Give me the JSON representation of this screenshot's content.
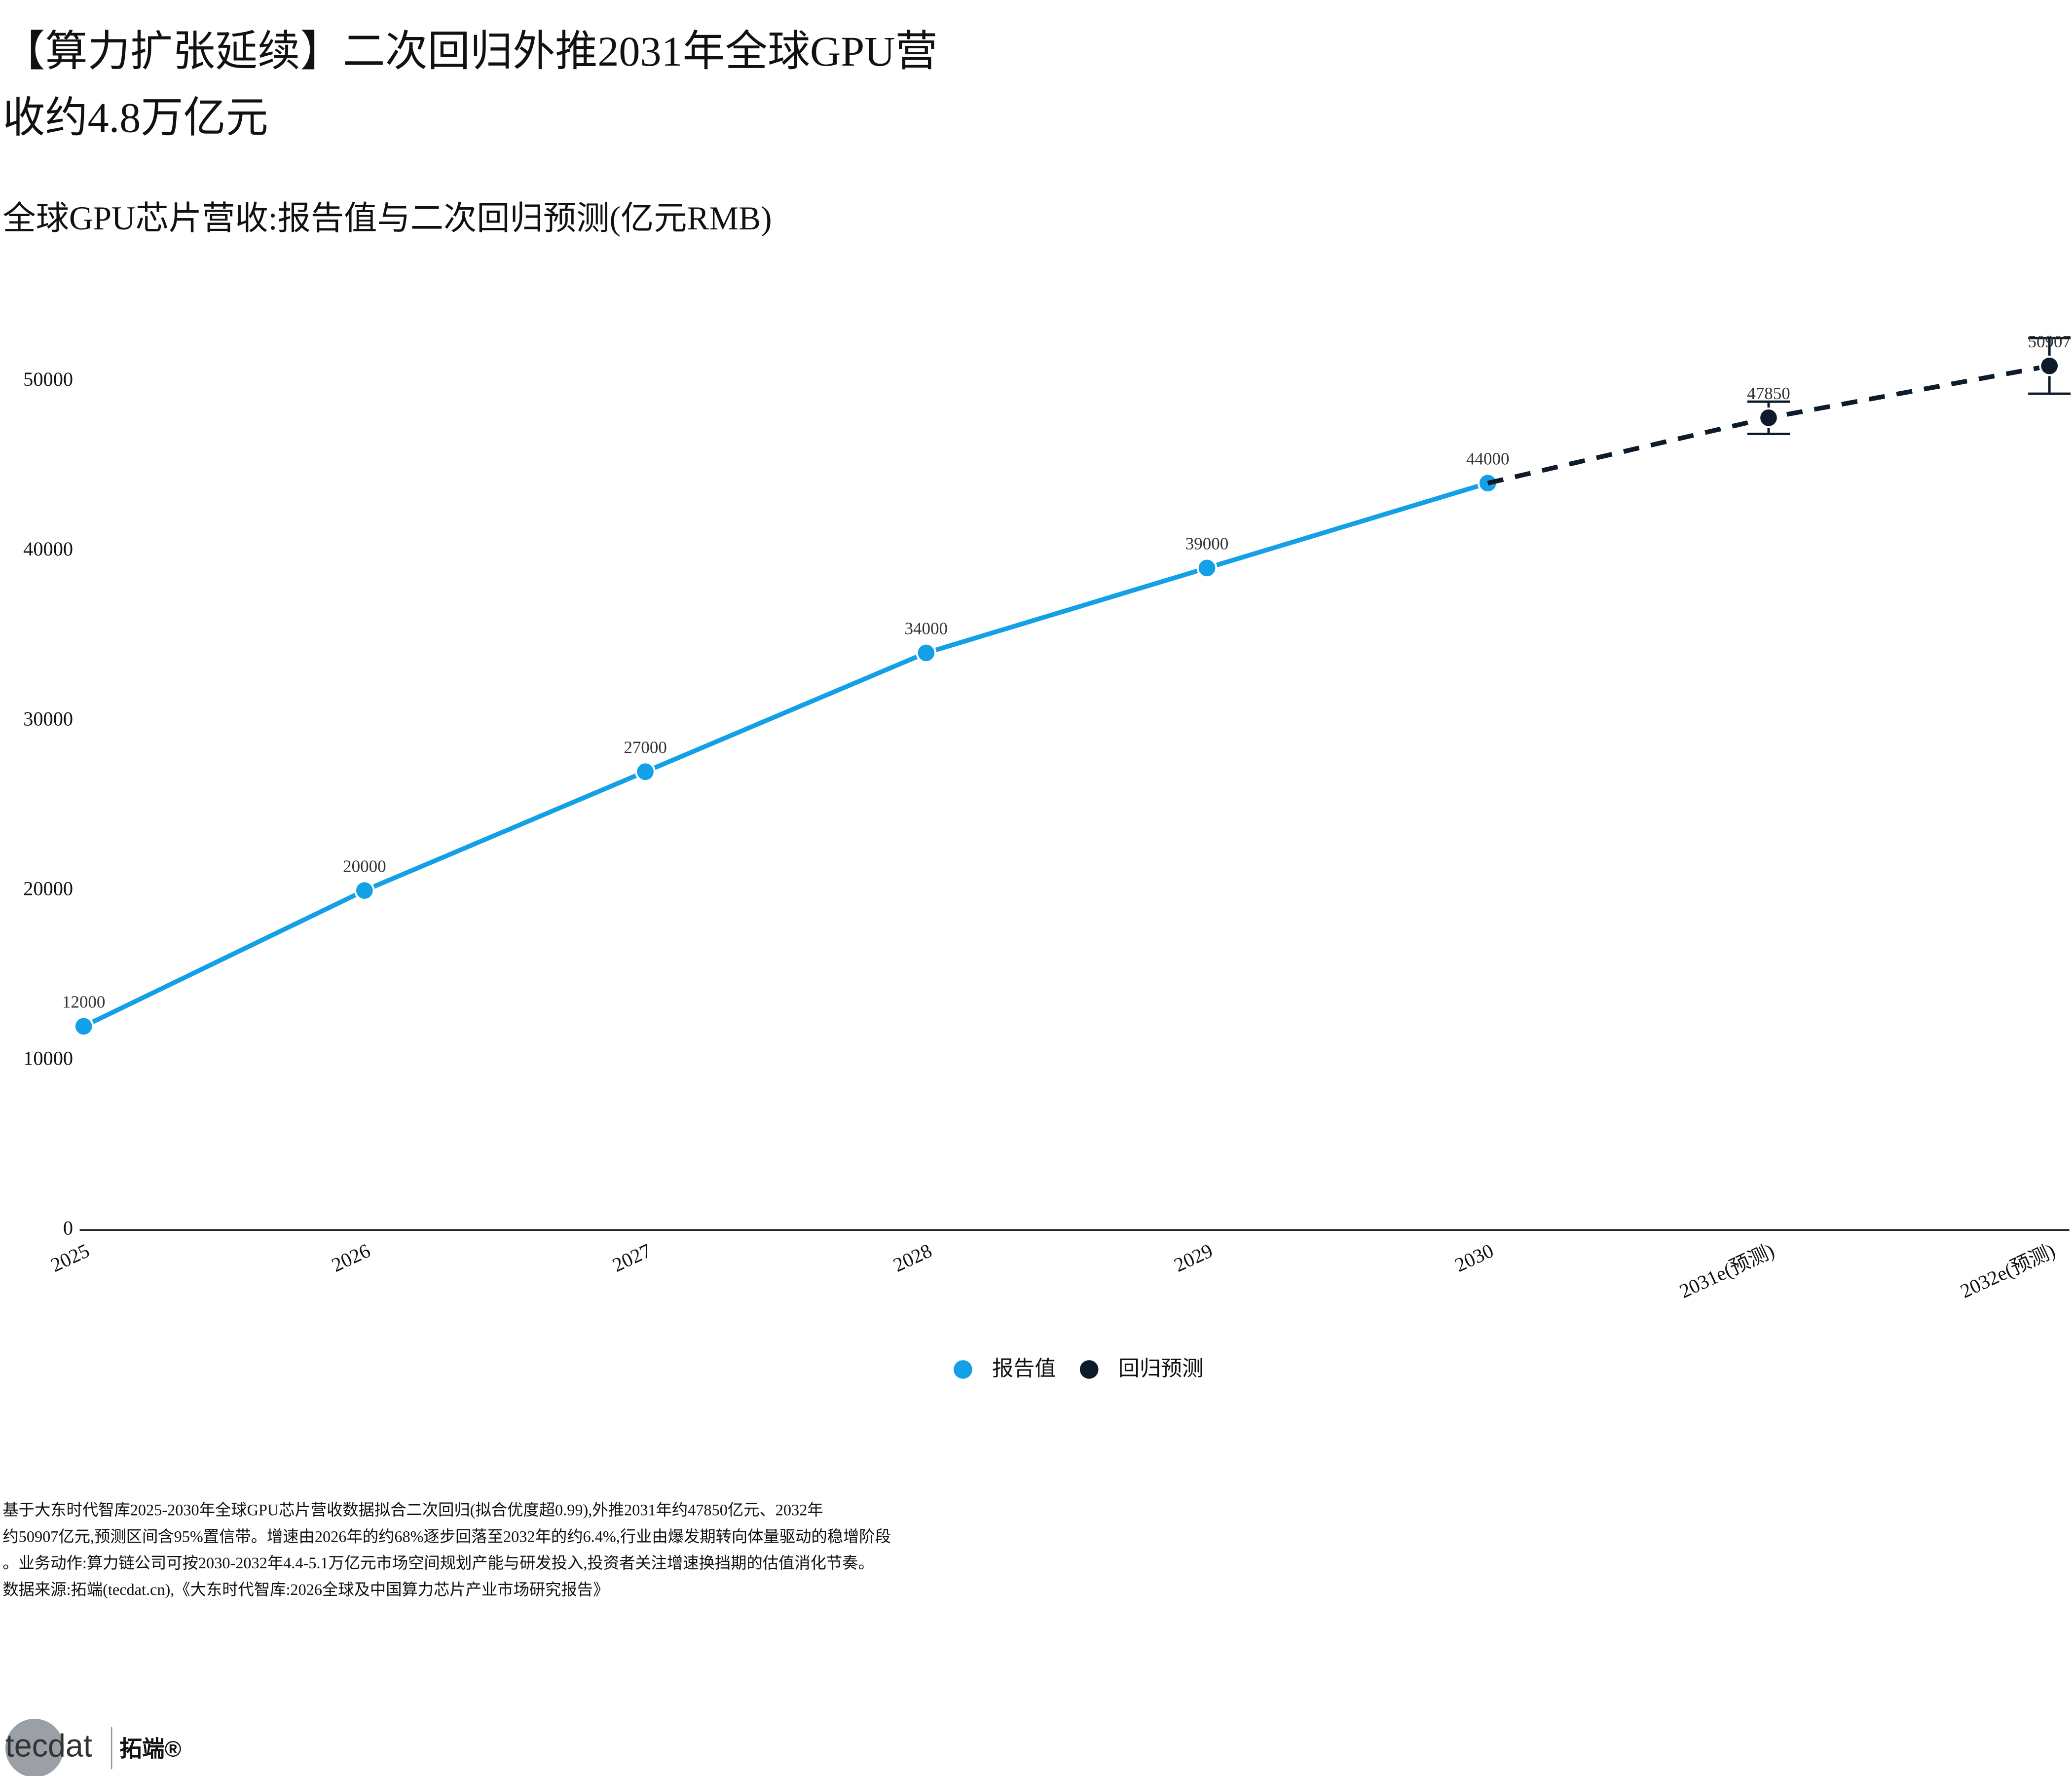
{
  "header": {
    "title_lines": [
      "【算力扩张延续】二次回归外推2031年全球GPU营",
      "收约4.8万亿元"
    ]
  },
  "chart_data": {
    "type": "line",
    "title": "全球GPU芯片营收:报告值与二次回归预测(亿元RMB)",
    "categories": [
      "2025",
      "2026",
      "2027",
      "2028",
      "2029",
      "2030",
      "2031e(预测)",
      "2032e(预测)"
    ],
    "series": [
      {
        "name": "报告值",
        "color": "#13a0e6",
        "values": [
          12000,
          20000,
          27000,
          34000,
          39000,
          44000,
          null,
          null
        ]
      },
      {
        "name": "回归预测",
        "color": "#0d1b2a",
        "dashed": true,
        "values": [
          null,
          null,
          null,
          null,
          null,
          null,
          47850,
          50907
        ],
        "errors": [
          null,
          null,
          null,
          null,
          null,
          null,
          950,
          1640
        ]
      }
    ],
    "ylim": [
      0,
      50000
    ],
    "yticks": [
      0,
      10000,
      20000,
      30000,
      40000,
      50000
    ],
    "grid": false,
    "legend": "bottom"
  },
  "notes": [
    "基于大东时代智库2025-2030年全球GPU芯片营收数据拟合二次回归(拟合优度超0.99),外推2031年约47850亿元、2032年",
    "约50907亿元,预测区间含95%置信带。增速由2026年的约68%逐步回落至2032年的约6.4%,行业由爆发期转向体量驱动的稳增阶段",
    "。业务动作:算力链公司可按2030-2032年4.4-5.1万亿元市场空间规划产能与研发投入,投资者关注增速换挡期的估值消化节奏。",
    "数据来源:拓端(tecdat.cn),《大东时代智库:2026全球及中国算力芯片产业市场研究报告》"
  ],
  "logo": {
    "mark": "tecdat",
    "name": "拓端®"
  }
}
